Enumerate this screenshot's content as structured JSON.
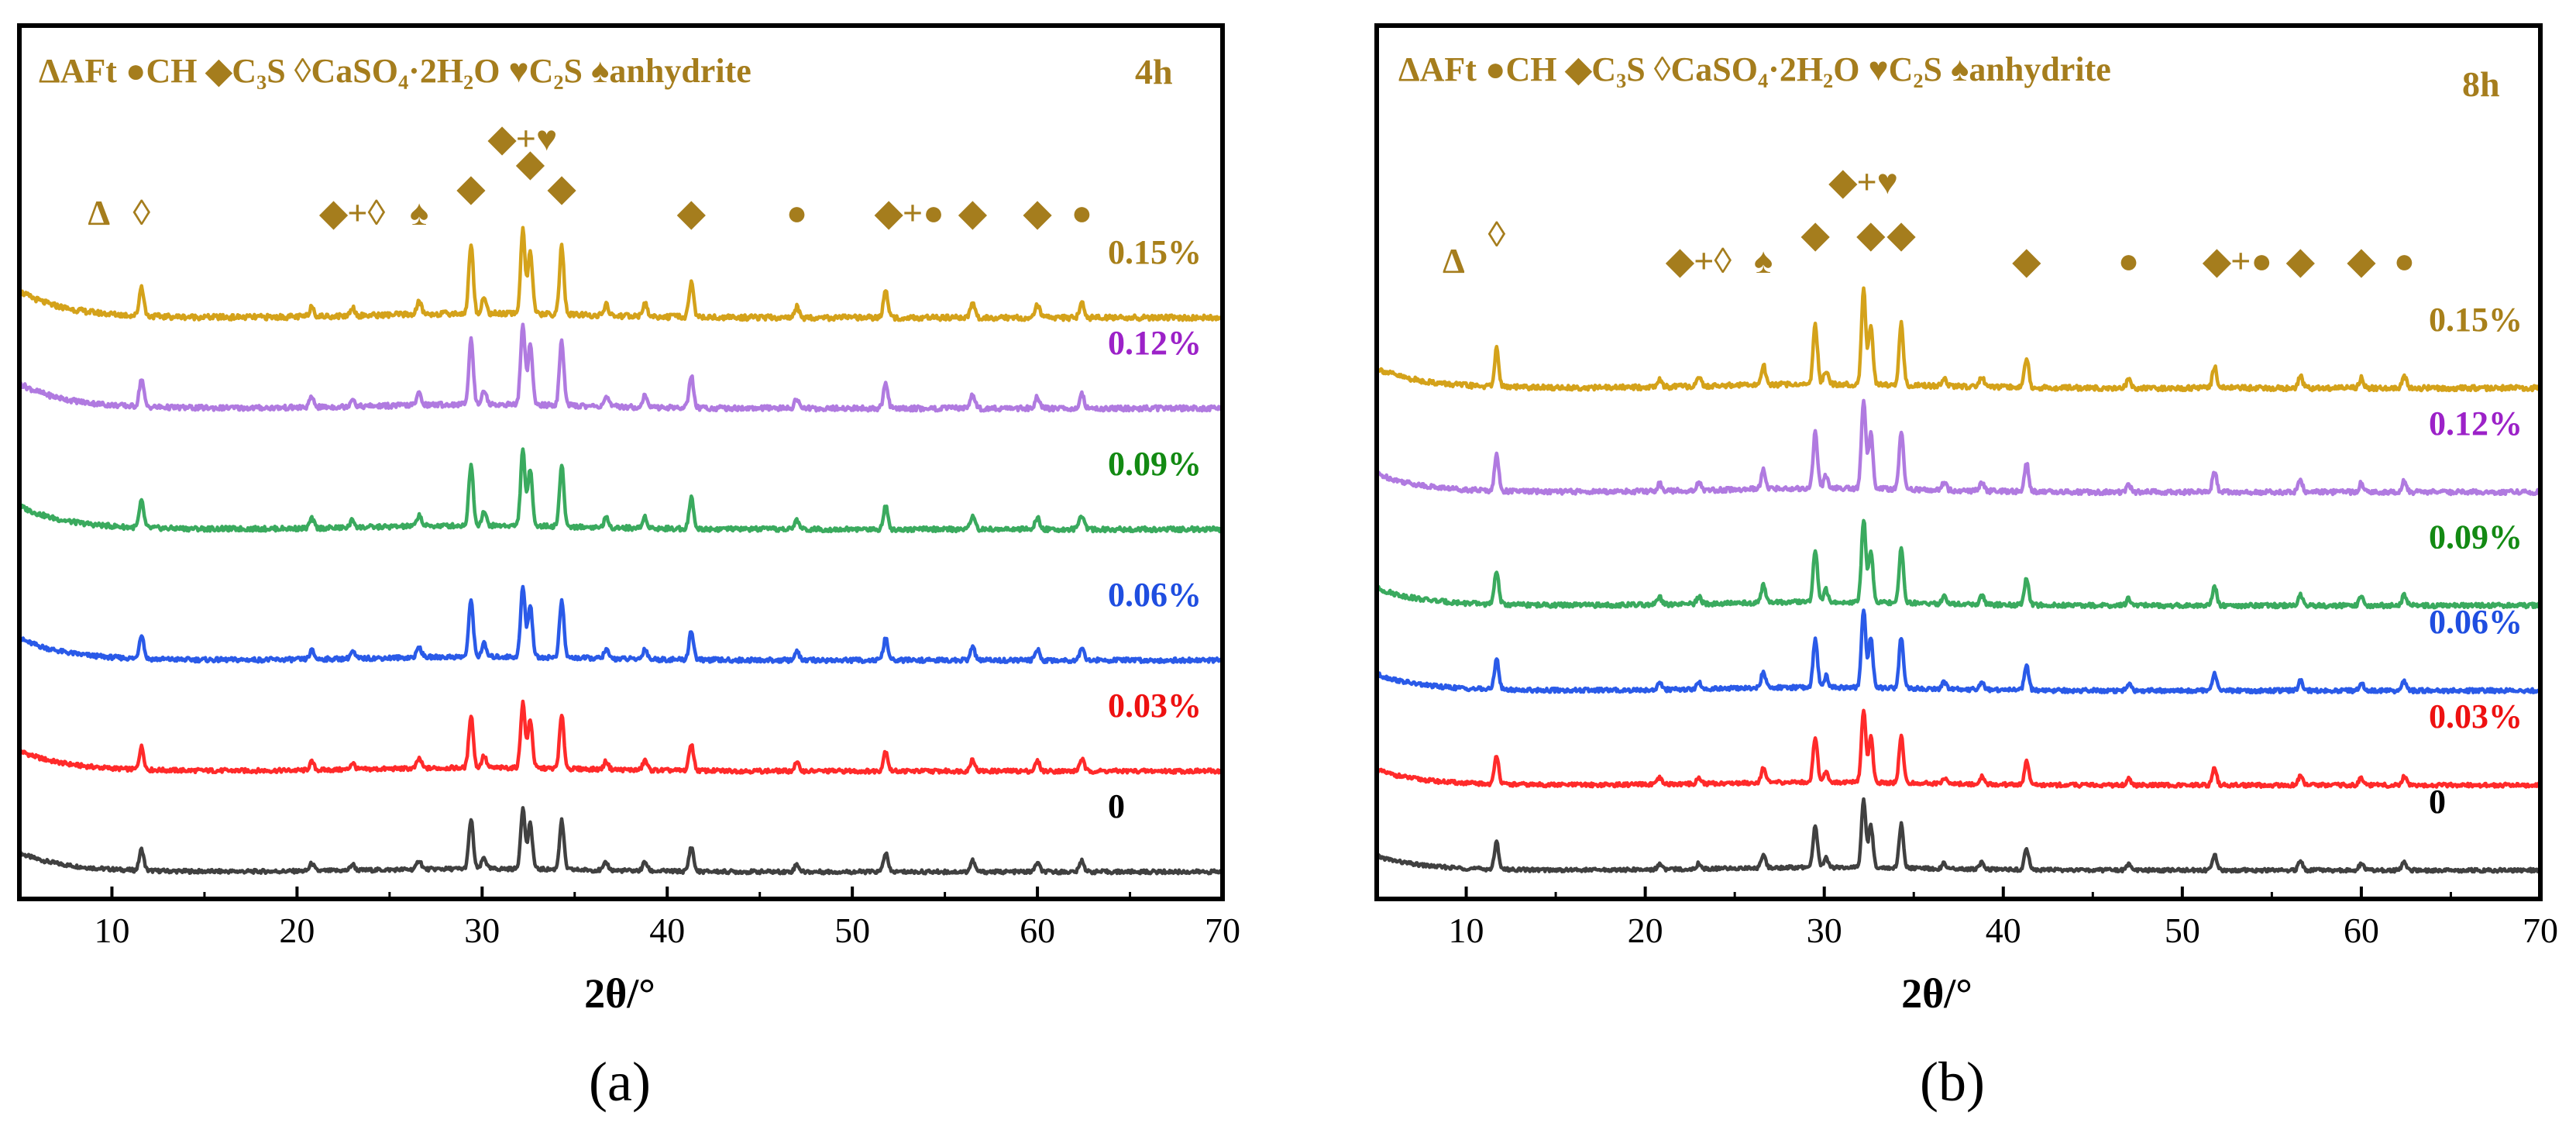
{
  "chart_data": [
    {
      "type": "line",
      "panel": "(a)",
      "time_label": "4h",
      "legend_text": "ΔAFt ●CH  ◆C₃S  ◊CaSO₄·2H₂O  ♥C₂S ♠anhydrite",
      "xlabel": "2θ/°",
      "xlim": [
        5,
        70
      ],
      "xticks": [
        "10",
        "20",
        "30",
        "40",
        "50",
        "60",
        "70"
      ],
      "series": [
        {
          "name": "0",
          "color": "#404040",
          "baseline": 0.0
        },
        {
          "name": "0.03%",
          "color": "#ff2a2a",
          "baseline": 1.0
        },
        {
          "name": "0.06%",
          "color": "#2a5ae8",
          "baseline": 2.1
        },
        {
          "name": "0.09%",
          "color": "#3aaa5e",
          "baseline": 3.4
        },
        {
          "name": "0.12%",
          "color": "#b07ae0",
          "baseline": 4.6
        },
        {
          "name": "0.15%",
          "color": "#d4a21a",
          "baseline": 5.5
        }
      ],
      "series_label_colors": [
        "#000000",
        "#ee1111",
        "#1f4ee0",
        "#138a13",
        "#9c22c8",
        "#a8801a"
      ],
      "peaks": [
        {
          "x": 11.6,
          "h": 0.28
        },
        {
          "x": 20.8,
          "h": 0.1
        },
        {
          "x": 23.0,
          "h": 0.08
        },
        {
          "x": 26.6,
          "h": 0.12
        },
        {
          "x": 29.4,
          "h": 0.65
        },
        {
          "x": 30.1,
          "h": 0.15
        },
        {
          "x": 32.2,
          "h": 0.8
        },
        {
          "x": 32.6,
          "h": 0.6
        },
        {
          "x": 34.3,
          "h": 0.65
        },
        {
          "x": 36.7,
          "h": 0.1
        },
        {
          "x": 38.8,
          "h": 0.12
        },
        {
          "x": 41.3,
          "h": 0.33
        },
        {
          "x": 47.0,
          "h": 0.1
        },
        {
          "x": 51.8,
          "h": 0.25
        },
        {
          "x": 56.5,
          "h": 0.15
        },
        {
          "x": 60.0,
          "h": 0.12
        },
        {
          "x": 62.4,
          "h": 0.15
        }
      ],
      "annotations": [
        {
          "text": "Δ",
          "x": 9.3,
          "row": 0
        },
        {
          "text": "◊",
          "x": 11.6,
          "row": 0
        },
        {
          "text": "◆+◊",
          "x": 23.0,
          "row": 0
        },
        {
          "text": "♠",
          "x": 26.6,
          "row": 0
        },
        {
          "text": "◆",
          "x": 29.4,
          "row": 1
        },
        {
          "text": "◆+♥",
          "x": 32.2,
          "row": 3
        },
        {
          "text": "◆",
          "x": 32.6,
          "row": 2
        },
        {
          "text": "◆",
          "x": 34.3,
          "row": 1
        },
        {
          "text": "◆",
          "x": 41.3,
          "row": 0
        },
        {
          "text": "●",
          "x": 47.0,
          "row": 0
        },
        {
          "text": "◆+●",
          "x": 53.1,
          "row": 0
        },
        {
          "text": "◆",
          "x": 56.5,
          "row": 0
        },
        {
          "text": "◆",
          "x": 60.0,
          "row": 0
        },
        {
          "text": "●",
          "x": 62.4,
          "row": 0
        }
      ]
    },
    {
      "type": "line",
      "panel": "(b)",
      "time_label": "8h",
      "legend_text": "ΔAFt ●CH  ◆C₃S  ◊CaSO₄·2H₂O  ♥C₂S ♠anhydrite",
      "xlabel": "2θ/°",
      "xlim": [
        5,
        70
      ],
      "xticks": [
        "10",
        "20",
        "30",
        "40",
        "50",
        "60",
        "70"
      ],
      "series": [
        {
          "name": "0",
          "color": "#404040",
          "baseline": 0.0
        },
        {
          "name": "0.03%",
          "color": "#ff2a2a",
          "baseline": 0.9
        },
        {
          "name": "0.06%",
          "color": "#2a5ae8",
          "baseline": 1.9
        },
        {
          "name": "0.09%",
          "color": "#3aaa5e",
          "baseline": 2.8
        },
        {
          "name": "0.12%",
          "color": "#b07ae0",
          "baseline": 4.0
        },
        {
          "name": "0.15%",
          "color": "#d4a21a",
          "baseline": 5.1
        }
      ],
      "series_label_colors": [
        "#000000",
        "#ee1111",
        "#1f4ee0",
        "#138a13",
        "#9c22c8",
        "#a8801a"
      ],
      "peaks": [
        {
          "x": 11.7,
          "h": 0.38
        },
        {
          "x": 20.8,
          "h": 0.08
        },
        {
          "x": 23.0,
          "h": 0.08
        },
        {
          "x": 26.6,
          "h": 0.2
        },
        {
          "x": 29.5,
          "h": 0.6
        },
        {
          "x": 30.1,
          "h": 0.14
        },
        {
          "x": 32.2,
          "h": 0.95
        },
        {
          "x": 32.6,
          "h": 0.6
        },
        {
          "x": 34.3,
          "h": 0.62
        },
        {
          "x": 36.7,
          "h": 0.08
        },
        {
          "x": 38.8,
          "h": 0.1
        },
        {
          "x": 41.3,
          "h": 0.3
        },
        {
          "x": 47.0,
          "h": 0.08
        },
        {
          "x": 51.8,
          "h": 0.22
        },
        {
          "x": 56.6,
          "h": 0.12
        },
        {
          "x": 60.0,
          "h": 0.1
        },
        {
          "x": 62.4,
          "h": 0.12
        }
      ],
      "annotations": [
        {
          "text": "Δ",
          "x": 9.3,
          "row": 0
        },
        {
          "text": "◊",
          "x": 11.7,
          "row": 1
        },
        {
          "text": "◆+◊",
          "x": 23.0,
          "row": 0
        },
        {
          "text": "♠",
          "x": 26.6,
          "row": 0
        },
        {
          "text": "◆",
          "x": 29.5,
          "row": 1
        },
        {
          "text": "◆+♥",
          "x": 32.2,
          "row": 3
        },
        {
          "text": "◆",
          "x": 32.6,
          "row": 1
        },
        {
          "text": "◆",
          "x": 34.3,
          "row": 1
        },
        {
          "text": "◆",
          "x": 41.3,
          "row": 0
        },
        {
          "text": "●",
          "x": 47.0,
          "row": 0
        },
        {
          "text": "◆+●",
          "x": 53.1,
          "row": 0
        },
        {
          "text": "◆",
          "x": 56.6,
          "row": 0
        },
        {
          "text": "◆",
          "x": 60.0,
          "row": 0
        },
        {
          "text": "●",
          "x": 62.4,
          "row": 0
        }
      ]
    }
  ]
}
